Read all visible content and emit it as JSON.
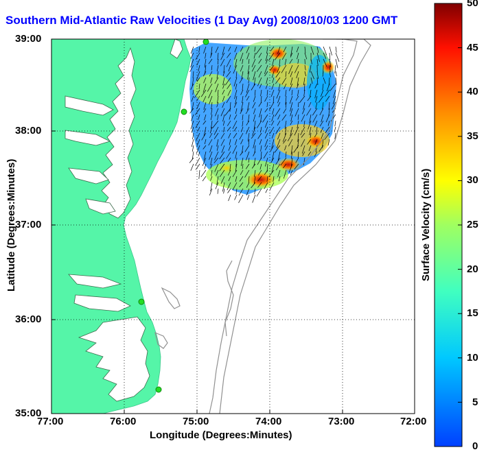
{
  "title": "Southern Mid-Atlantic Raw Velocities (1 Day Avg) 2008/10/03 1200 GMT",
  "map": {
    "xlabel": "Longitude (Degrees:Minutes)",
    "ylabel": "Latitude (Degrees:Minutes)",
    "x_ticks": [
      "77:00",
      "76:00",
      "75:00",
      "74:00",
      "73:00",
      "72:00"
    ],
    "y_ticks": [
      "39:00",
      "38:00",
      "37:00",
      "36:00",
      "35:00"
    ],
    "grid": "dotted",
    "land_color": "#55f5a8",
    "ocean_color": "#ffffff",
    "station_color": "#22dd22"
  },
  "colorbar": {
    "label": "Surface Velocity (cm/s)",
    "ticks": [
      "50",
      "45",
      "40",
      "35",
      "30",
      "25",
      "20",
      "15",
      "10",
      "5",
      "0"
    ],
    "min": 0,
    "max": 50
  }
}
